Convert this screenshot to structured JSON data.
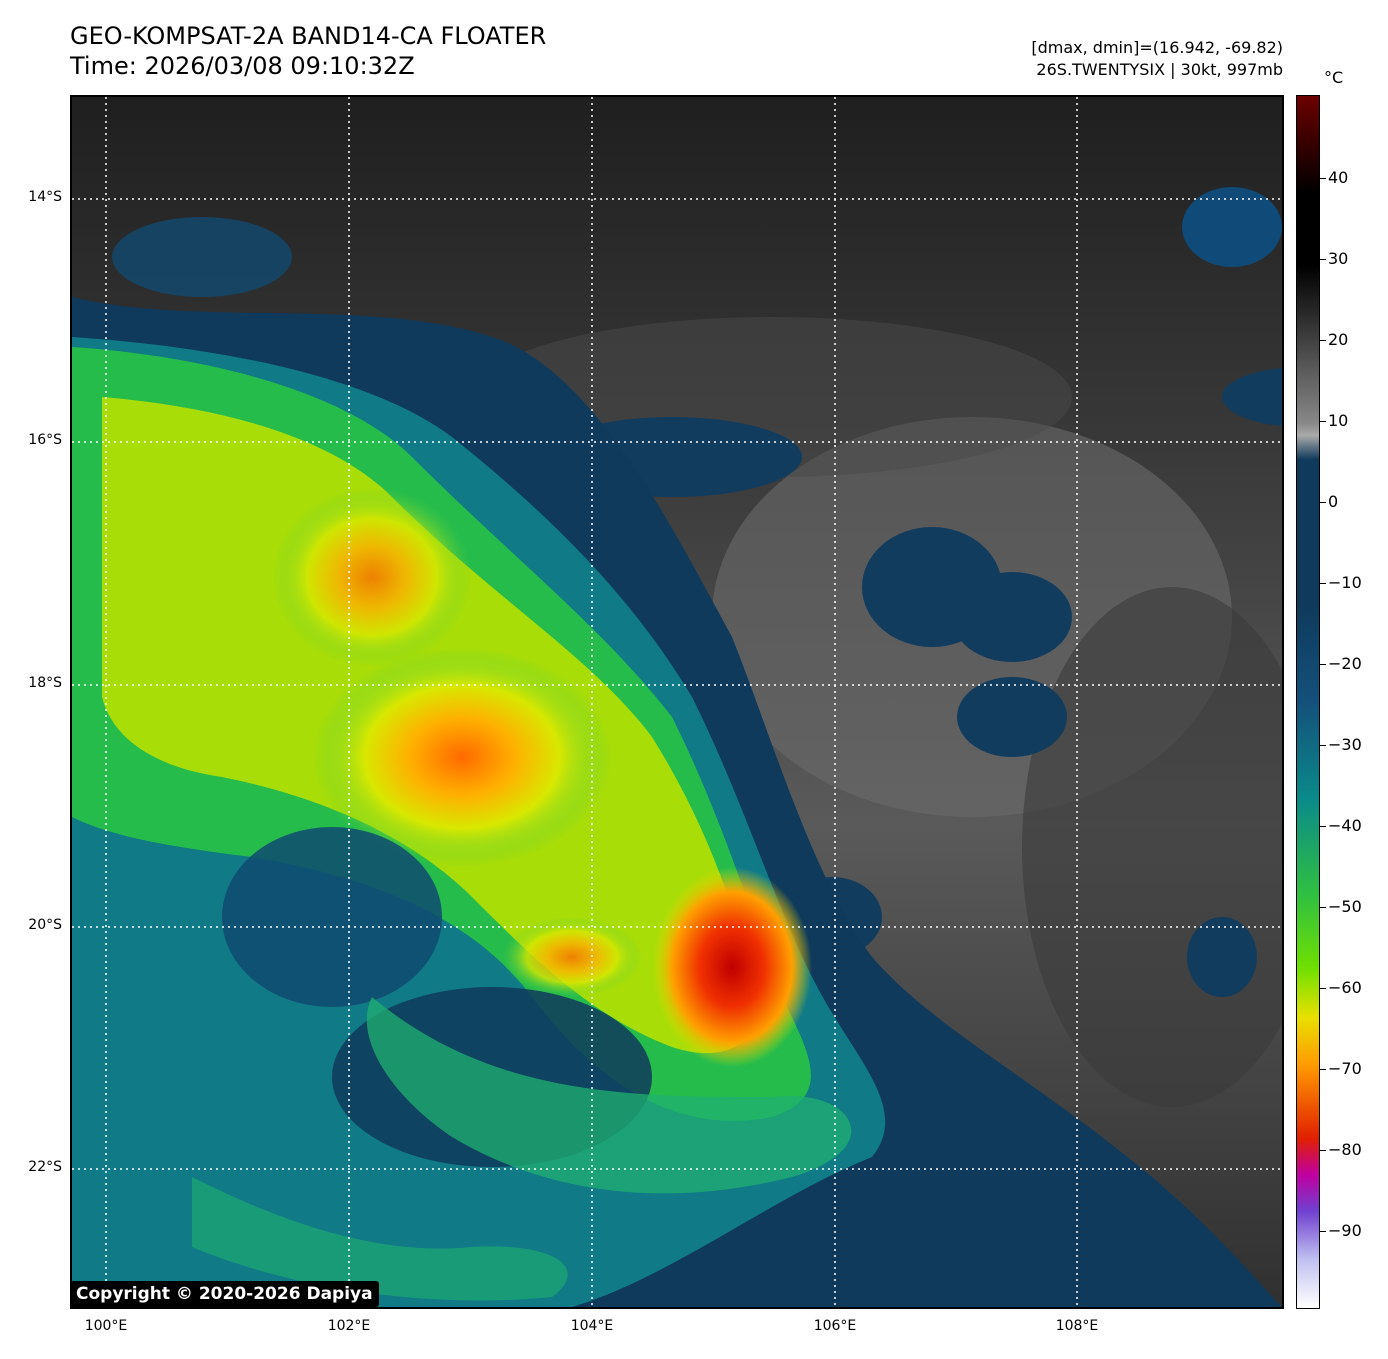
{
  "header": {
    "title_line1": "GEO-KOMPSAT-2A BAND14-CA FLOATER",
    "title_line2": "Time: 2026/03/08 09:10:32Z",
    "info_line1": "[dmax, dmin]=(16.942, -69.82)",
    "info_line2": "26S.TWENTYSIX | 30kt, 997mb"
  },
  "map": {
    "lat_labels": [
      "14°S",
      "16°S",
      "18°S",
      "20°S",
      "22°S"
    ],
    "lon_labels": [
      "100°E",
      "102°E",
      "104°E",
      "106°E",
      "108°E"
    ],
    "copyright": "Copyright © 2020-2026 Dapiya"
  },
  "colorbar": {
    "unit": "°C",
    "ticks": [
      "40",
      "30",
      "20",
      "10",
      "0",
      "−10",
      "−20",
      "−30",
      "−40",
      "−50",
      "−60",
      "−70",
      "−80",
      "−90"
    ],
    "colors": {
      "hot": "#6b0000",
      "black": "#000000",
      "gray": "#888888",
      "navy": "#0f3a5c",
      "teal": "#0a8a8a",
      "green": "#30c040",
      "yellow": "#e8e000",
      "orange": "#ff9a00",
      "red": "#e02000",
      "purple": "#7040d0",
      "white": "#ffffff"
    }
  }
}
